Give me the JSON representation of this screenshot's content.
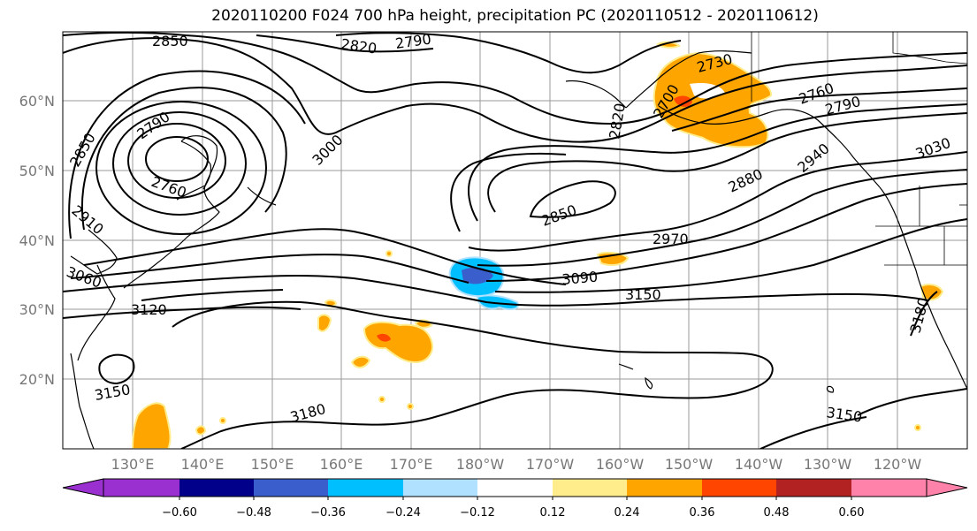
{
  "title": "2020110200 F024 700 hPa height, precipitation PC (2020110512 - 2020110612)",
  "lat_labels": [
    "60°N",
    "50°N",
    "40°N",
    "30°N",
    "20°N"
  ],
  "lon_labels": [
    "130°E",
    "140°E",
    "150°E",
    "160°E",
    "170°E",
    "180°W",
    "170°W",
    "160°W",
    "150°W",
    "140°W",
    "130°W",
    "120°W"
  ],
  "contour_labels": [
    "2850",
    "2820",
    "2790",
    "2730",
    "2700",
    "2820",
    "2760",
    "2790",
    "2790",
    "2850",
    "2760",
    "3000",
    "2910",
    "3060",
    "3120",
    "2850",
    "2880",
    "2940",
    "3030",
    "2970",
    "3090",
    "3150",
    "3150",
    "3180",
    "3180",
    "3150"
  ],
  "colorbar": {
    "ticks": [
      "−0.60",
      "−0.48",
      "−0.36",
      "−0.24",
      "−0.12",
      "0.12",
      "0.24",
      "0.36",
      "0.48",
      "0.60"
    ],
    "colors": [
      "#9b30d0",
      "#00008b",
      "#3a5fcd",
      "#00bfff",
      "#b0e2ff",
      "#ffffff",
      "#ffec8b",
      "#ffa500",
      "#ff4500",
      "#b22222",
      "#ff82ab"
    ]
  }
}
